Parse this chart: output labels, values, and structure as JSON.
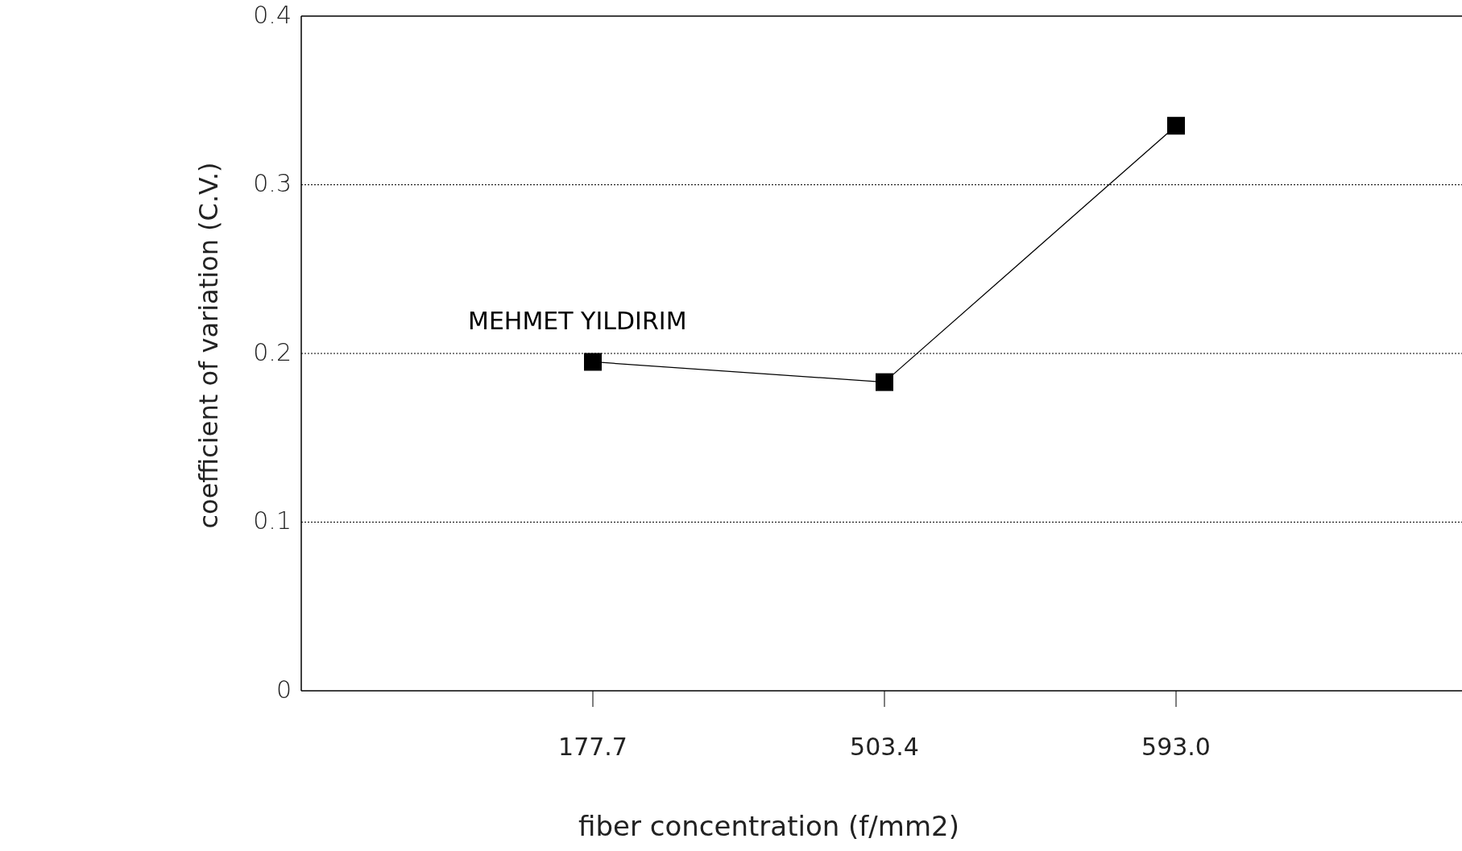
{
  "chart_data": {
    "type": "line",
    "xlabel": "fiber concentration (f/mm2)",
    "ylabel": "coefficient of variation (C.V.)",
    "categories": [
      "177.7",
      "503.4",
      "593.0"
    ],
    "series": [
      {
        "name": "MEHMET YILDIRIM",
        "color": "#000000",
        "values": [
          0.195,
          0.183,
          0.335
        ]
      }
    ],
    "ylim": [
      0,
      0.4
    ],
    "yticks": [
      {
        "value": 0,
        "label": "0"
      },
      0.1,
      0.2,
      0.3,
      0.4
    ],
    "grid": "y",
    "marker": "square",
    "line_style": "solid",
    "legend": "top left"
  }
}
